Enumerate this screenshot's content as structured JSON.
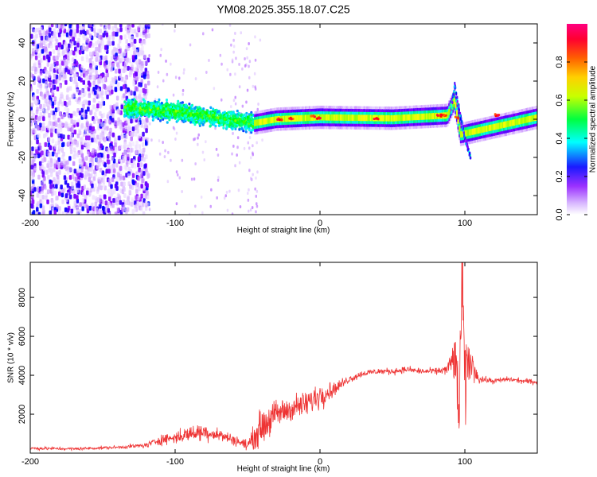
{
  "figure_title": "YM08.2025.355.18.07.C25",
  "chart_data": [
    {
      "type": "heatmap",
      "title": "YM08.2025.355.18.07.C25",
      "xlabel": "Height of straight line (km)",
      "ylabel": "Frequency (Hz)",
      "xlim": [
        -200,
        150
      ],
      "ylim": [
        -50,
        50
      ],
      "x_ticks": [
        -200,
        -100,
        0,
        100
      ],
      "y_ticks": [
        -40,
        -20,
        0,
        20,
        40
      ],
      "colorbar": {
        "label": "Normalized spectral amplitude",
        "range": [
          0,
          1
        ],
        "ticks": [
          0.0,
          0.2,
          0.4,
          0.6,
          0.8
        ],
        "colormap": [
          "#ffffff",
          "#d8b8ff",
          "#8800ff",
          "#0000ff",
          "#00ffff",
          "#00ff00",
          "#ffff00",
          "#ff8800",
          "#ff0000",
          "#ff0088"
        ]
      },
      "description_regions": [
        {
          "x_range": [
            -200,
            -118
          ],
          "frequency_range": [
            -50,
            50
          ],
          "amplitude": 0.15
        },
        {
          "x_range": [
            -135,
            -45
          ],
          "frequency_range": [
            -10,
            15
          ],
          "amplitude": 0.35
        },
        {
          "x_range": [
            -45,
            150
          ],
          "frequency_range": [
            -3,
            4
          ],
          "amplitude": 0.55
        }
      ],
      "centerline": {
        "x": [
          -135,
          -100,
          -45,
          -30,
          0,
          50,
          88,
          93,
          97,
          150
        ],
        "frequency": [
          6,
          4,
          -2,
          0,
          1,
          0.5,
          2,
          10,
          -8,
          1
        ]
      }
    },
    {
      "type": "line",
      "xlabel": "Height of straight line (km)",
      "ylabel": "SNR (10 * v/v)",
      "xlim": [
        -200,
        150
      ],
      "ylim": [
        0,
        9800
      ],
      "x_ticks": [
        -200,
        -100,
        0,
        100
      ],
      "y_ticks": [
        2000,
        4000,
        6000,
        8000
      ],
      "color": "#ee3333",
      "series": [
        {
          "x": [
            -200,
            -170,
            -140,
            -120,
            -110,
            -100,
            -90,
            -80,
            -70,
            -60,
            -50,
            -40,
            -30,
            -20,
            -10,
            0,
            10,
            20,
            30,
            40,
            50,
            60,
            70,
            80,
            88,
            93,
            96,
            98,
            100,
            103,
            110,
            120,
            130,
            140,
            150
          ],
          "y": [
            250,
            220,
            300,
            400,
            700,
            800,
            1000,
            1100,
            950,
            700,
            400,
            1400,
            2000,
            2300,
            2500,
            3000,
            3300,
            3800,
            4100,
            4200,
            4200,
            4300,
            4200,
            4200,
            4300,
            5000,
            2000,
            9000,
            3500,
            4800,
            3800,
            3700,
            3800,
            3700,
            3650
          ],
          "noise": [
            120,
            120,
            120,
            200,
            400,
            500,
            600,
            700,
            500,
            400,
            400,
            1500,
            1100,
            1000,
            1000,
            1100,
            500,
            300,
            250,
            250,
            250,
            250,
            250,
            250,
            400,
            2000,
            3000,
            4000,
            4000,
            1500,
            300,
            200,
            200,
            200,
            200
          ]
        }
      ]
    }
  ]
}
